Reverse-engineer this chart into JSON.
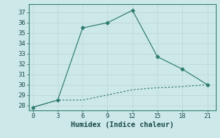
{
  "x": [
    0,
    3,
    6,
    9,
    12,
    15,
    18,
    21
  ],
  "y_solid": [
    27.8,
    28.5,
    35.5,
    36.0,
    37.2,
    32.7,
    31.5,
    30.0
  ],
  "y_dotted": [
    27.8,
    28.5,
    28.5,
    29.0,
    29.5,
    29.7,
    29.8,
    30.0
  ],
  "line_color": "#2e7d6e",
  "bg_color": "#cde8e8",
  "grid_color": "#c0d8d8",
  "xlabel": "Humidex (Indice chaleur)",
  "xlim": [
    -0.5,
    22
  ],
  "ylim": [
    27.5,
    37.8
  ],
  "yticks": [
    28,
    29,
    30,
    31,
    32,
    33,
    34,
    35,
    36,
    37
  ],
  "xticks": [
    0,
    3,
    6,
    9,
    12,
    15,
    18,
    21
  ],
  "label_fontsize": 7.5,
  "tick_fontsize": 6.5
}
